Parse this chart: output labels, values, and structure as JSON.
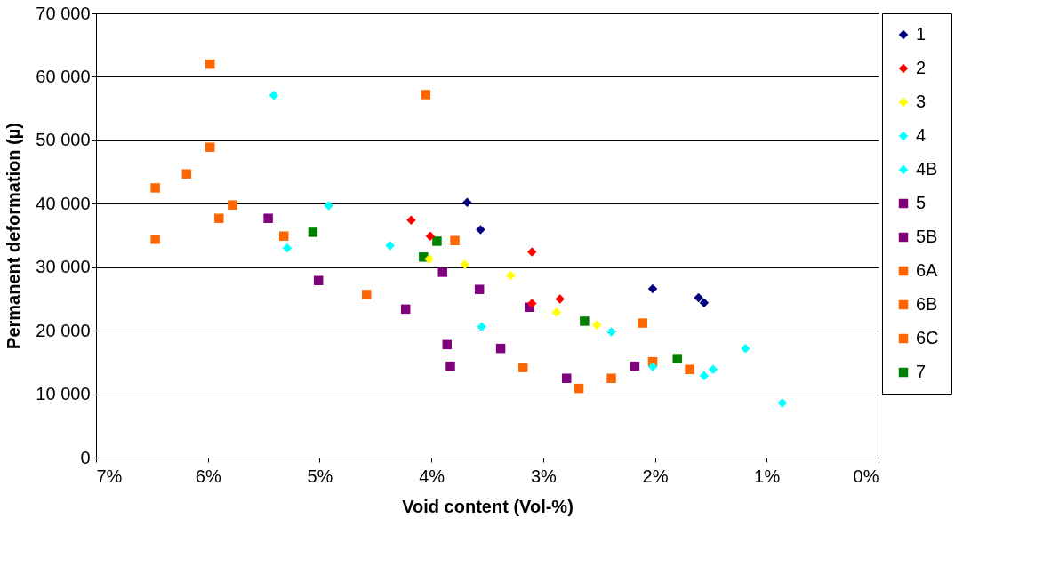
{
  "chart_data": {
    "type": "scatter",
    "xlabel": "Void content (Vol-%)",
    "ylabel": "Permanent deformation (µ)",
    "xlim": [
      7,
      0
    ],
    "xticks": [
      {
        "value": 7,
        "label": "7%"
      },
      {
        "value": 6,
        "label": "6%"
      },
      {
        "value": 5,
        "label": "5%"
      },
      {
        "value": 4,
        "label": "4%"
      },
      {
        "value": 3,
        "label": "3%"
      },
      {
        "value": 2,
        "label": "2%"
      },
      {
        "value": 1,
        "label": "1%"
      },
      {
        "value": 0,
        "label": "0%"
      }
    ],
    "ylim": [
      0,
      70000
    ],
    "yticks": [
      0,
      {
        "value": 10000,
        "label": "10 000"
      },
      {
        "value": 20000,
        "label": "20 000"
      },
      {
        "value": 30000,
        "label": "30 000"
      },
      {
        "value": 40000,
        "label": "40 000"
      },
      {
        "value": 50000,
        "label": "50 000"
      },
      {
        "value": 60000,
        "label": "60 000"
      },
      {
        "value": 70000,
        "label": "70 000"
      }
    ],
    "grid": "y",
    "legend": "right",
    "series": [
      {
        "name": "1",
        "color": "#000080",
        "marker": "diamond",
        "x": [
          3.68,
          3.56,
          2.02,
          1.61,
          1.56
        ],
        "values": [
          40200,
          35900,
          26600,
          25200,
          24400
        ]
      },
      {
        "name": "2",
        "color": "#ff0000",
        "marker": "diamond",
        "x": [
          4.18,
          4.01,
          3.1,
          3.1,
          2.85
        ],
        "values": [
          37400,
          34900,
          32400,
          24300,
          25000
        ]
      },
      {
        "name": "3",
        "color": "#ffff00",
        "marker": "diamond",
        "x": [
          4.02,
          3.7,
          3.29,
          2.88,
          2.52
        ],
        "values": [
          31300,
          30400,
          28700,
          22900,
          20900
        ]
      },
      {
        "name": "4",
        "color": "#00ffff",
        "marker": "diamond",
        "x": [
          5.41,
          4.92,
          5.29,
          4.37,
          3.55
        ],
        "values": [
          57100,
          39700,
          33000,
          33400,
          20600
        ]
      },
      {
        "name": "4B",
        "color": "#00ffff",
        "marker": "diamond",
        "x": [
          2.39,
          1.19,
          1.56,
          1.48,
          0.86,
          2.02
        ],
        "values": [
          19800,
          17200,
          12900,
          13900,
          8600,
          14300
        ]
      },
      {
        "name": "5",
        "color": "#800080",
        "marker": "square",
        "x": [
          3.86,
          3.83,
          3.38,
          2.79,
          2.18
        ],
        "values": [
          17800,
          14400,
          17200,
          12500,
          14400
        ]
      },
      {
        "name": "5B",
        "color": "#800080",
        "marker": "square",
        "x": [
          5.46,
          5.01,
          4.23,
          3.9,
          3.57,
          3.12
        ],
        "values": [
          37700,
          27900,
          23400,
          29200,
          26500,
          23700
        ]
      },
      {
        "name": "6A",
        "color": "#ff6600",
        "marker": "square",
        "x": [
          5.98,
          4.05,
          5.98,
          5.78,
          3.79
        ],
        "values": [
          62000,
          57200,
          48900,
          39800,
          34200
        ]
      },
      {
        "name": "6B",
        "color": "#ff6600",
        "marker": "square",
        "x": [
          6.19,
          6.47,
          6.47,
          5.9,
          5.32,
          4.58
        ],
        "values": [
          44700,
          42500,
          34400,
          37700,
          34900,
          25700
        ]
      },
      {
        "name": "6C",
        "color": "#ff6600",
        "marker": "square",
        "x": [
          3.18,
          2.68,
          2.39,
          2.11,
          2.02,
          1.69
        ],
        "values": [
          14200,
          10900,
          12500,
          21200,
          15100,
          13900
        ]
      },
      {
        "name": "7",
        "color": "#008000",
        "marker": "square",
        "x": [
          5.06,
          3.95,
          4.07,
          2.63,
          1.8
        ],
        "values": [
          35500,
          34100,
          31600,
          21500,
          15600
        ]
      }
    ]
  }
}
